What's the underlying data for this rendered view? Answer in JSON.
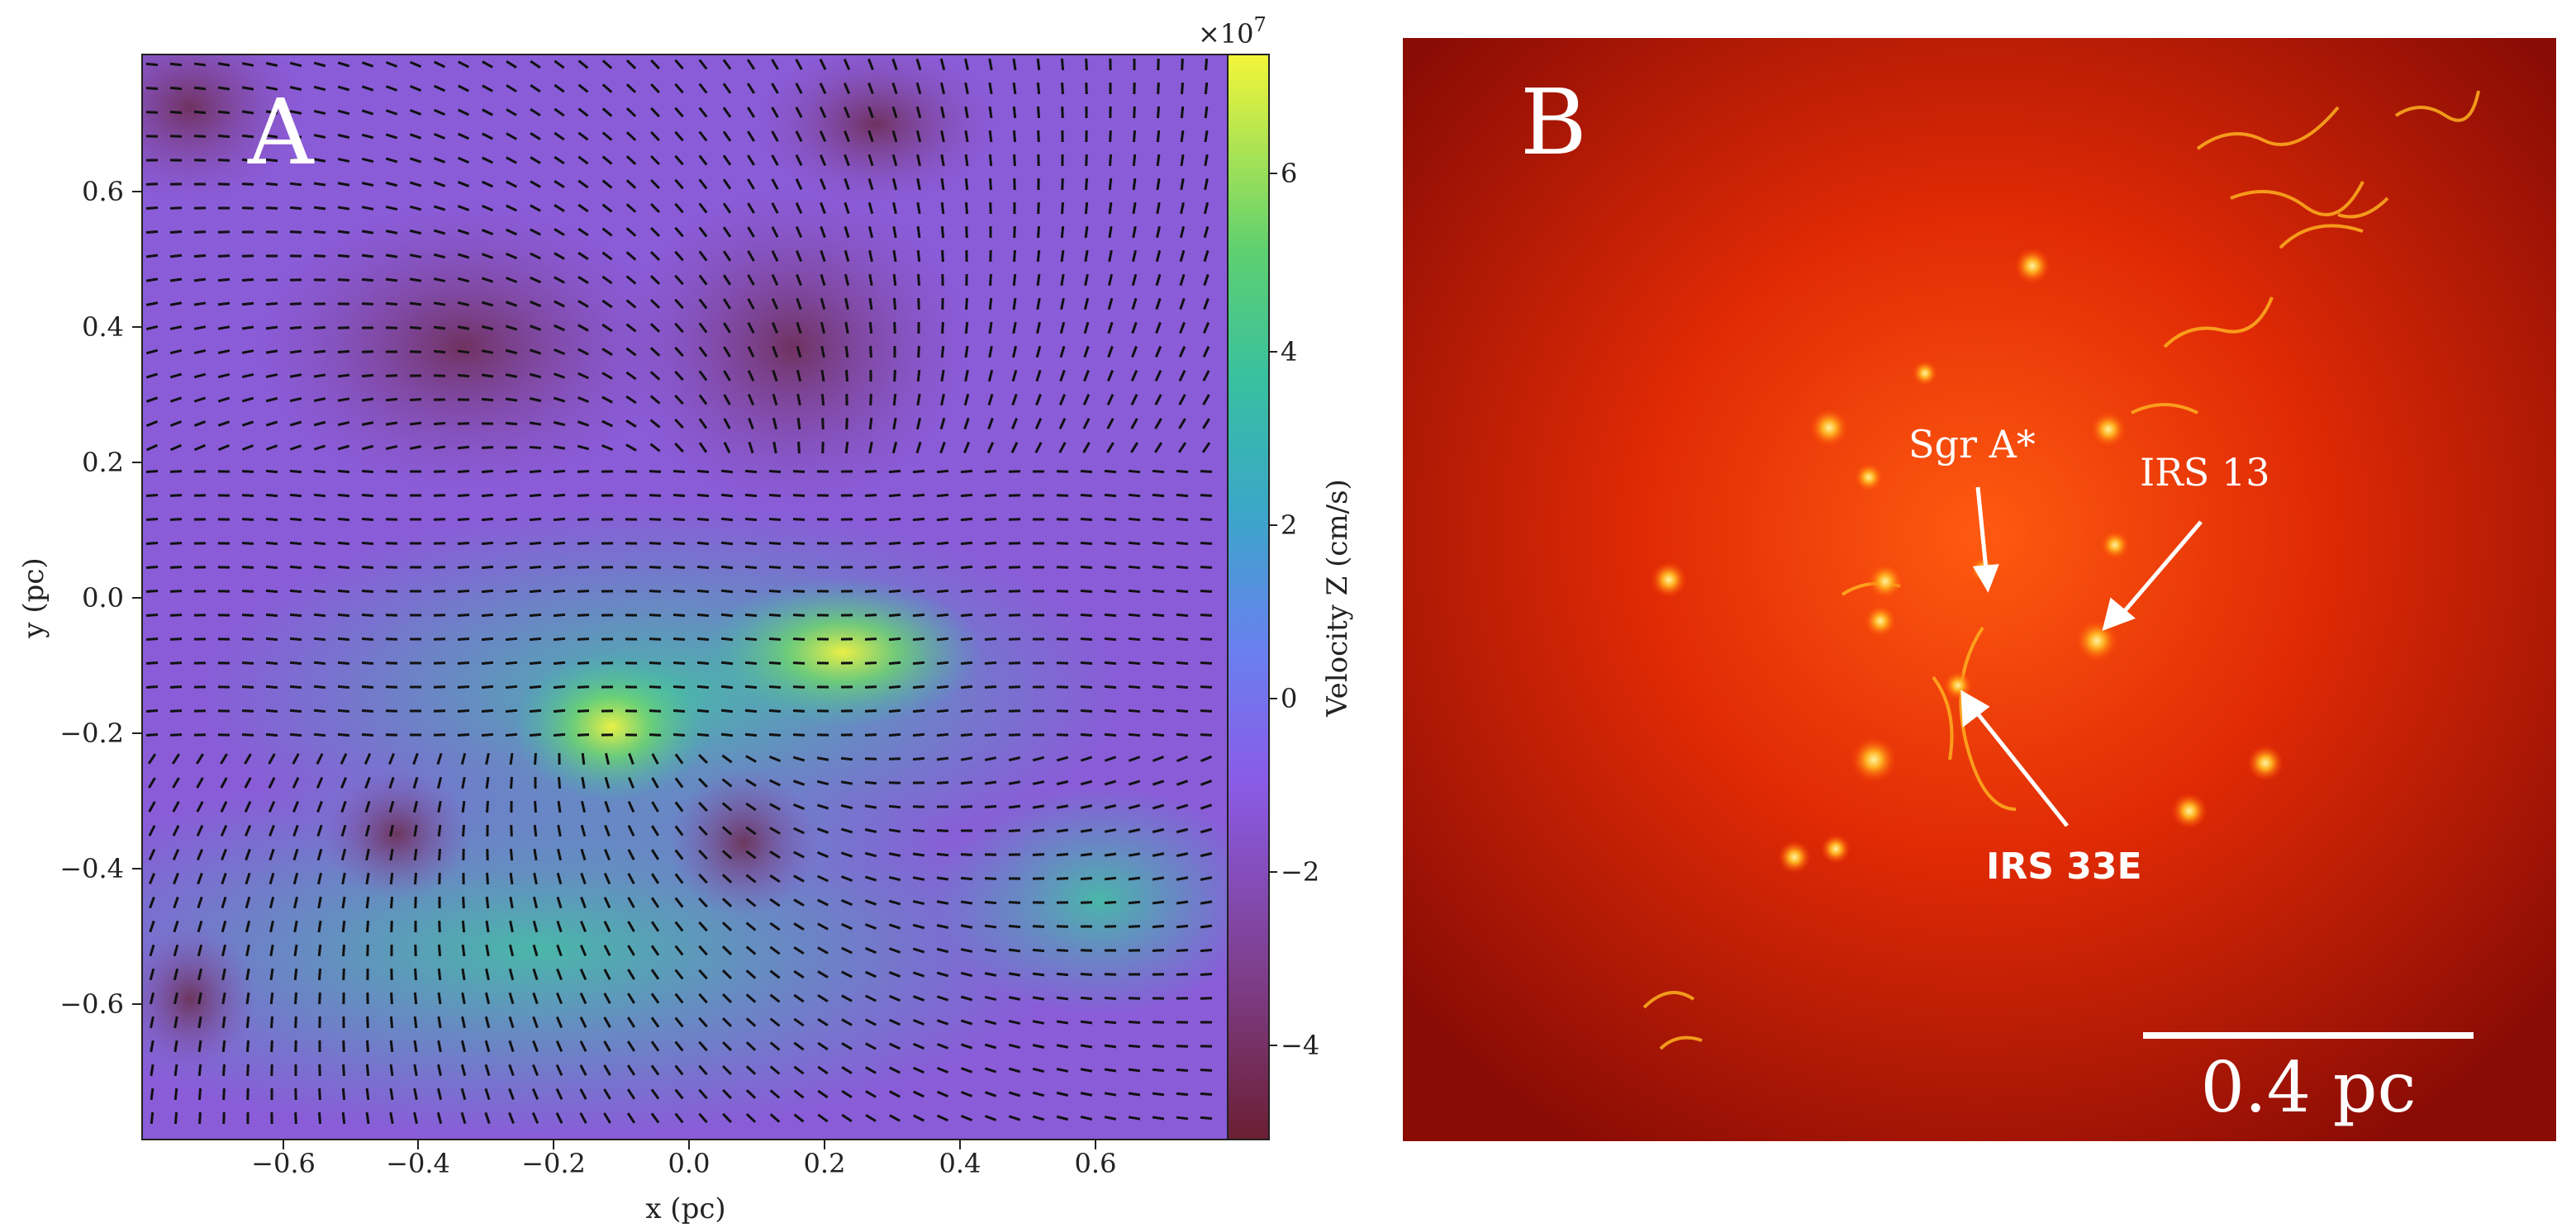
{
  "panel_a": {
    "letter": "A",
    "xlabel": "x  (pc)",
    "ylabel": "y  (pc)",
    "x_ticks": [
      "−0.6",
      "−0.4",
      "−0.2",
      "0.0",
      "0.2",
      "0.4",
      "0.6"
    ],
    "y_ticks": [
      "0.6",
      "0.4",
      "0.2",
      "0.0",
      "−0.2",
      "−0.4",
      "−0.6"
    ],
    "colorbar": {
      "label": "Velocity Z  (cm/s)",
      "multiplier": "×10",
      "multiplier_exp": "7",
      "ticks": [
        "6",
        "4",
        "2",
        "0",
        "−2",
        "−4"
      ],
      "range": [
        -5,
        7.5
      ],
      "colormap": [
        "#6b1f33",
        "#7c3d8f",
        "#8a55e8",
        "#5a8df0",
        "#38b3b3",
        "#3fc98a",
        "#a7e14a",
        "#f5f53a"
      ]
    },
    "background": "#8a5cd8"
  },
  "panel_b": {
    "letter": "B",
    "labels": {
      "sgr_a": "Sgr A*",
      "irs13": "IRS 13",
      "irs33e": "IRS 33E"
    },
    "scale_bar_label": "0.4 pc",
    "background": "#c41a00",
    "glow_color": "#ff9a00"
  }
}
